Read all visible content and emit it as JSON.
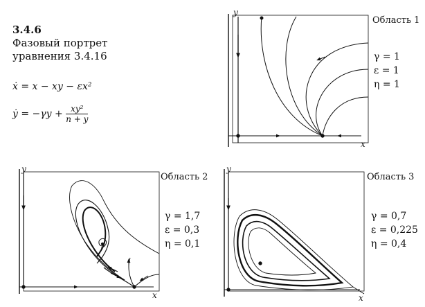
{
  "caption": {
    "number": "3.4.6",
    "title_line1": "Фазовый портрет",
    "title_line2": "уравнения 3.4.16",
    "eq1": "ẋ = x − xy − εx²",
    "eq2_lhs": "ẏ = −γy + ",
    "eq2_num": "xy²",
    "eq2_den": "n + y"
  },
  "panels": [
    {
      "label": "Область 1",
      "params": {
        "gamma": "γ = 1",
        "epsilon": "ε = 1",
        "eta": "η = 1"
      },
      "x_label": "x",
      "y_label": "y"
    },
    {
      "label": "Область 2",
      "params": {
        "gamma": "γ = 1,7",
        "epsilon": "ε = 0,3",
        "eta": "η = 0,1"
      },
      "x_label": "x",
      "y_label": "y"
    },
    {
      "label": "Область 3",
      "params": {
        "gamma": "γ = 0,7",
        "epsilon": "ε = 0,225",
        "eta": "η = 0,4"
      },
      "x_label": "x",
      "y_label": "y"
    }
  ]
}
